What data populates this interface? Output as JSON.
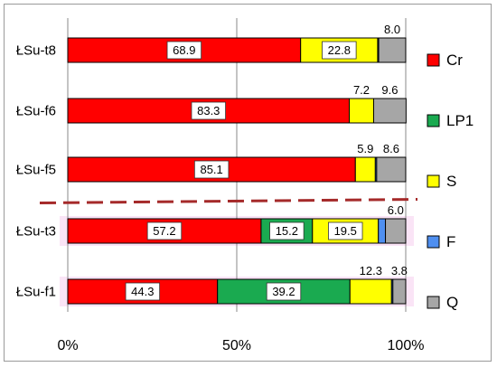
{
  "chart_data": {
    "type": "bar",
    "orientation": "horizontal",
    "stacked": true,
    "percent_stacked": true,
    "categories": [
      "ŁSu-t8",
      "ŁSu-f6",
      "ŁSu-f5",
      "ŁSu-t3",
      "ŁSu-f1"
    ],
    "series": [
      {
        "name": "Cr",
        "color": "#ff0000",
        "values": [
          68.9,
          83.3,
          85.1,
          57.2,
          44.3
        ]
      },
      {
        "name": "LP1",
        "color": "#1aaa50",
        "values": [
          0,
          0,
          0,
          15.2,
          39.2
        ]
      },
      {
        "name": "S",
        "color": "#ffff00",
        "values": [
          22.8,
          7.2,
          5.9,
          19.5,
          12.3
        ]
      },
      {
        "name": "F",
        "color": "#4f8ff0",
        "values": [
          0.3,
          0,
          0.4,
          2.1,
          0.4
        ]
      },
      {
        "name": "Q",
        "color": "#a6a6a6",
        "values": [
          8.0,
          9.6,
          8.6,
          6.0,
          3.8
        ]
      }
    ],
    "data_labels": [
      {
        "category": "ŁSu-t8",
        "series": "Cr",
        "text": "68.9",
        "boxed": true
      },
      {
        "category": "ŁSu-t8",
        "series": "S",
        "text": "22.8",
        "boxed": true
      },
      {
        "category": "ŁSu-t8",
        "series": "Q",
        "text": "8.0",
        "boxed": false
      },
      {
        "category": "ŁSu-f6",
        "series": "Cr",
        "text": "83.3",
        "boxed": true
      },
      {
        "category": "ŁSu-f6",
        "series": "S",
        "text": "7.2",
        "boxed": false
      },
      {
        "category": "ŁSu-f6",
        "series": "Q",
        "text": "9.6",
        "boxed": false
      },
      {
        "category": "ŁSu-f5",
        "series": "Cr",
        "text": "85.1",
        "boxed": true
      },
      {
        "category": "ŁSu-f5",
        "series": "S",
        "text": "5.9",
        "boxed": false
      },
      {
        "category": "ŁSu-f5",
        "series": "Q",
        "text": "8.6",
        "boxed": false
      },
      {
        "category": "ŁSu-t3",
        "series": "Cr",
        "text": "57.2",
        "boxed": true
      },
      {
        "category": "ŁSu-t3",
        "series": "LP1",
        "text": "15.2",
        "boxed": true
      },
      {
        "category": "ŁSu-t3",
        "series": "S",
        "text": "19.5",
        "boxed": true
      },
      {
        "category": "ŁSu-t3",
        "series": "Q",
        "text": "6.0",
        "boxed": false
      },
      {
        "category": "ŁSu-f1",
        "series": "Cr",
        "text": "44.3",
        "boxed": true
      },
      {
        "category": "ŁSu-f1",
        "series": "LP1",
        "text": "39.2",
        "boxed": true
      },
      {
        "category": "ŁSu-f1",
        "series": "S",
        "text": "12.3",
        "boxed": false
      },
      {
        "category": "ŁSu-f1",
        "series": "Q",
        "text": "3.8",
        "boxed": false
      }
    ],
    "xlim": [
      0,
      100
    ],
    "xticks": [
      0,
      50,
      100
    ],
    "xtick_labels": [
      "0%",
      "50%",
      "100%"
    ],
    "grid": "vertical at 50% and 100%",
    "legend_position": "right",
    "separator": {
      "style": "dashed",
      "color": "#a52a2a",
      "between": [
        "ŁSu-f5",
        "ŁSu-t3"
      ]
    },
    "title": "",
    "xlabel": "",
    "ylabel": ""
  }
}
